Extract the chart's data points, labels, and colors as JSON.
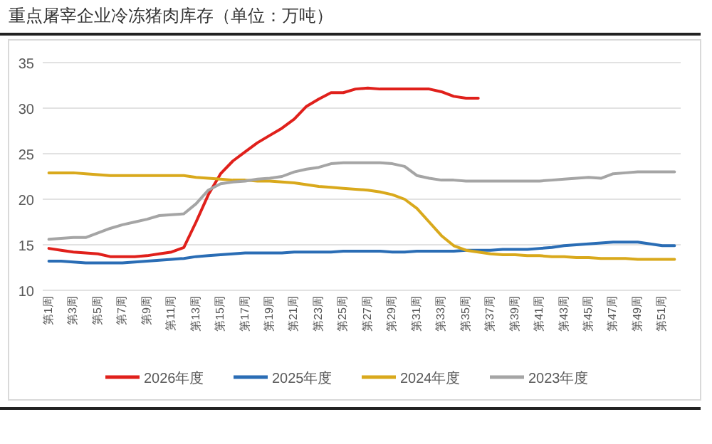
{
  "chart_data": {
    "type": "line",
    "title": "重点屠宰企业冷冻猪肉库存（单位：万吨）",
    "categories": [
      "第1周",
      null,
      "第3周",
      null,
      "第5周",
      null,
      "第7周",
      null,
      "第9周",
      null,
      "第11周",
      null,
      "第13周",
      null,
      "第15周",
      null,
      "第17周",
      null,
      "第19周",
      null,
      "第21周",
      null,
      "第23周",
      null,
      "第25周",
      null,
      "第27周",
      null,
      "第29周",
      null,
      "第31周",
      null,
      "第33周",
      null,
      "第35周",
      null,
      "第37周",
      null,
      "第39周",
      null,
      "第41周",
      null,
      "第43周",
      null,
      "第45周",
      null,
      "第47周",
      null,
      "第49周",
      null,
      "第51周",
      null
    ],
    "series": [
      {
        "name": "2026年度",
        "color": "#e0201b",
        "values": [
          14.6,
          14.4,
          14.2,
          14.1,
          14.0,
          13.7,
          13.7,
          13.7,
          13.8,
          14.0,
          14.2,
          14.7,
          17.5,
          20.5,
          22.8,
          24.2,
          25.2,
          26.2,
          27.0,
          27.8,
          28.8,
          30.2,
          31.0,
          31.7,
          31.7,
          32.1,
          32.2,
          32.1,
          32.1,
          32.1,
          32.1,
          32.1,
          31.8,
          31.3,
          31.1,
          31.1,
          null,
          null,
          null,
          null,
          null,
          null,
          null,
          null,
          null,
          null,
          null,
          null,
          null,
          null,
          null,
          null
        ]
      },
      {
        "name": "2025年度",
        "color": "#2a6db5",
        "values": [
          13.2,
          13.2,
          13.1,
          13.0,
          13.0,
          13.0,
          13.0,
          13.1,
          13.2,
          13.3,
          13.4,
          13.5,
          13.7,
          13.8,
          13.9,
          14.0,
          14.1,
          14.1,
          14.1,
          14.1,
          14.2,
          14.2,
          14.2,
          14.2,
          14.3,
          14.3,
          14.3,
          14.3,
          14.2,
          14.2,
          14.3,
          14.3,
          14.3,
          14.3,
          14.4,
          14.4,
          14.4,
          14.5,
          14.5,
          14.5,
          14.6,
          14.7,
          14.9,
          15.0,
          15.1,
          15.2,
          15.3,
          15.3,
          15.3,
          15.1,
          14.9,
          14.9
        ]
      },
      {
        "name": "2024年度",
        "color": "#d9a91c",
        "values": [
          22.9,
          22.9,
          22.9,
          22.8,
          22.7,
          22.6,
          22.6,
          22.6,
          22.6,
          22.6,
          22.6,
          22.6,
          22.4,
          22.3,
          22.2,
          22.1,
          22.1,
          22.0,
          22.0,
          21.9,
          21.8,
          21.6,
          21.4,
          21.3,
          21.2,
          21.1,
          21.0,
          20.8,
          20.5,
          20.0,
          19.0,
          17.5,
          16.0,
          14.9,
          14.4,
          14.2,
          14.0,
          13.9,
          13.9,
          13.8,
          13.8,
          13.7,
          13.7,
          13.6,
          13.6,
          13.5,
          13.5,
          13.5,
          13.4,
          13.4,
          13.4,
          13.4
        ]
      },
      {
        "name": "2023年度",
        "color": "#a5a5a5",
        "values": [
          15.6,
          15.7,
          15.8,
          15.8,
          16.3,
          16.8,
          17.2,
          17.5,
          17.8,
          18.2,
          18.3,
          18.4,
          19.5,
          21.0,
          21.7,
          21.9,
          22.0,
          22.2,
          22.3,
          22.5,
          23.0,
          23.3,
          23.5,
          23.9,
          24.0,
          24.0,
          24.0,
          24.0,
          23.9,
          23.6,
          22.6,
          22.3,
          22.1,
          22.1,
          22.0,
          22.0,
          22.0,
          22.0,
          22.0,
          22.0,
          22.0,
          22.1,
          22.2,
          22.3,
          22.4,
          22.3,
          22.8,
          22.9,
          23.0,
          23.0,
          23.0,
          23.0
        ]
      }
    ],
    "ylim": [
      10,
      35
    ],
    "yticks": [
      10,
      15,
      20,
      25,
      30,
      35
    ],
    "grid": "y",
    "legend": "bottom",
    "marker": "none",
    "line_style": "solid"
  }
}
